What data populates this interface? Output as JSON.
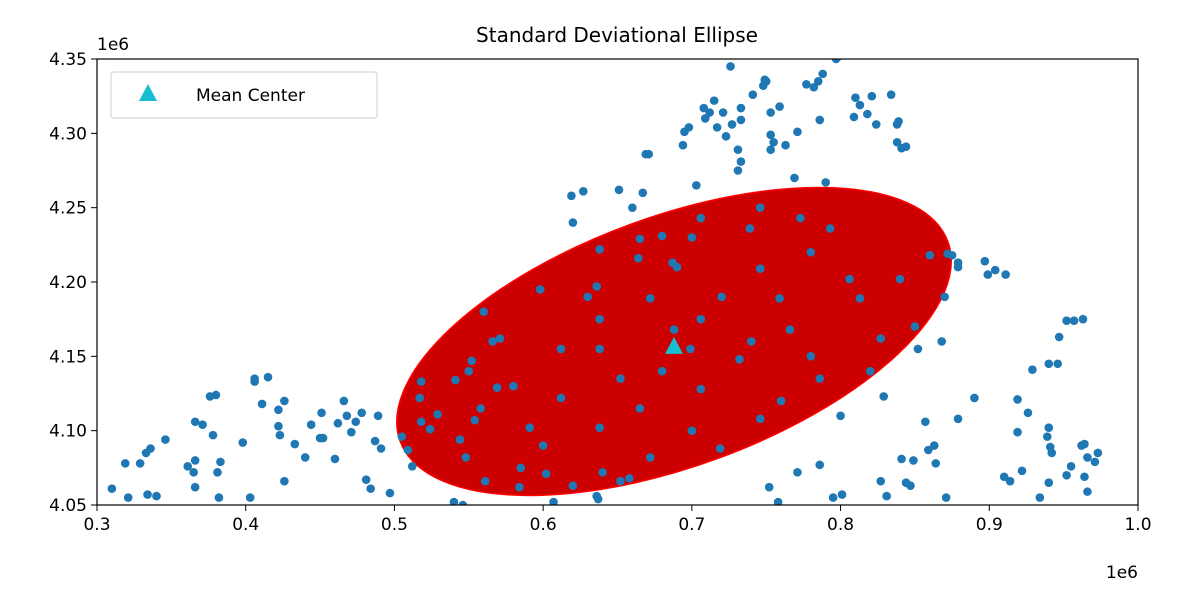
{
  "chart_data": {
    "type": "scatter",
    "title": "Standard Deviational Ellipse",
    "xlabel": "",
    "ylabel": "",
    "x_offset_label": "1e6",
    "y_offset_label": "1e6",
    "xlim": [
      0.3,
      1.0
    ],
    "ylim": [
      4.05,
      4.35
    ],
    "x_ticks": [
      0.3,
      0.4,
      0.5,
      0.6,
      0.7,
      0.8,
      0.9,
      1.0
    ],
    "x_tick_labels": [
      "0.3",
      "0.4",
      "0.5",
      "0.6",
      "0.7",
      "0.8",
      "0.9",
      "1.0"
    ],
    "y_ticks": [
      4.05,
      4.1,
      4.15,
      4.2,
      4.25,
      4.3,
      4.35
    ],
    "y_tick_labels": [
      "4.05",
      "4.10",
      "4.15",
      "4.20",
      "4.25",
      "4.30",
      "4.35"
    ],
    "units_note": "values in units of 1e6",
    "grid": false,
    "legend": {
      "placement": "top-left",
      "entries": [
        {
          "label": "Mean Center",
          "marker": "triangle",
          "color": "#17becf"
        }
      ]
    },
    "colors": {
      "points": "#1f77b4",
      "ellipse_fill": "#cc0000",
      "ellipse_edge": "#ff0000",
      "mean_center": "#17becf"
    },
    "mean_center": {
      "x": 0.688,
      "y": 4.157
    },
    "ellipse": {
      "center_x": 0.688,
      "center_y": 4.16,
      "semi_major": 0.196,
      "semi_minor": 0.084,
      "angle_deg": 20
    },
    "points": [
      [
        0.31,
        4.061
      ],
      [
        0.321,
        4.055
      ],
      [
        0.319,
        4.078
      ],
      [
        0.329,
        4.078
      ],
      [
        0.334,
        4.057
      ],
      [
        0.333,
        4.085
      ],
      [
        0.336,
        4.088
      ],
      [
        0.346,
        4.094
      ],
      [
        0.34,
        4.056
      ],
      [
        0.361,
        4.076
      ],
      [
        0.366,
        4.08
      ],
      [
        0.366,
        4.106
      ],
      [
        0.371,
        4.104
      ],
      [
        0.365,
        4.072
      ],
      [
        0.366,
        4.062
      ],
      [
        0.381,
        4.072
      ],
      [
        0.383,
        4.079
      ],
      [
        0.382,
        4.055
      ],
      [
        0.376,
        4.123
      ],
      [
        0.38,
        4.124
      ],
      [
        0.378,
        4.097
      ],
      [
        0.398,
        4.092
      ],
      [
        0.403,
        4.055
      ],
      [
        0.406,
        4.135
      ],
      [
        0.406,
        4.133
      ],
      [
        0.415,
        4.136
      ],
      [
        0.411,
        4.118
      ],
      [
        0.422,
        4.114
      ],
      [
        0.422,
        4.103
      ],
      [
        0.423,
        4.097
      ],
      [
        0.426,
        4.12
      ],
      [
        0.426,
        4.066
      ],
      [
        0.433,
        4.091
      ],
      [
        0.44,
        4.082
      ],
      [
        0.444,
        4.104
      ],
      [
        0.45,
        4.095
      ],
      [
        0.451,
        4.112
      ],
      [
        0.452,
        4.095
      ],
      [
        0.46,
        4.081
      ],
      [
        0.462,
        4.105
      ],
      [
        0.466,
        4.12
      ],
      [
        0.468,
        4.11
      ],
      [
        0.471,
        4.099
      ],
      [
        0.474,
        4.106
      ],
      [
        0.478,
        4.112
      ],
      [
        0.481,
        4.067
      ],
      [
        0.484,
        4.061
      ],
      [
        0.487,
        4.093
      ],
      [
        0.489,
        4.11
      ],
      [
        0.491,
        4.088
      ],
      [
        0.497,
        4.058
      ],
      [
        0.505,
        4.096
      ],
      [
        0.512,
        4.076
      ],
      [
        0.509,
        4.087
      ],
      [
        0.518,
        4.106
      ],
      [
        0.529,
        4.111
      ],
      [
        0.518,
        4.133
      ],
      [
        0.541,
        4.134
      ],
      [
        0.544,
        4.094
      ],
      [
        0.552,
        4.147
      ],
      [
        0.554,
        4.107
      ],
      [
        0.546,
        4.05
      ],
      [
        0.566,
        4.16
      ],
      [
        0.569,
        4.129
      ],
      [
        0.619,
        4.258
      ],
      [
        0.627,
        4.261
      ],
      [
        0.636,
        4.197
      ],
      [
        0.651,
        4.262
      ],
      [
        0.664,
        4.216
      ],
      [
        0.667,
        4.26
      ],
      [
        0.669,
        4.286
      ],
      [
        0.671,
        4.286
      ],
      [
        0.68,
        4.231
      ],
      [
        0.687,
        4.213
      ],
      [
        0.694,
        4.292
      ],
      [
        0.695,
        4.301
      ],
      [
        0.698,
        4.304
      ],
      [
        0.703,
        4.265
      ],
      [
        0.708,
        4.317
      ],
      [
        0.709,
        4.31
      ],
      [
        0.712,
        4.314
      ],
      [
        0.715,
        4.322
      ],
      [
        0.717,
        4.304
      ],
      [
        0.721,
        4.314
      ],
      [
        0.723,
        4.298
      ],
      [
        0.727,
        4.306
      ],
      [
        0.726,
        4.345
      ],
      [
        0.733,
        4.317
      ],
      [
        0.733,
        4.309
      ],
      [
        0.731,
        4.289
      ],
      [
        0.733,
        4.281
      ],
      [
        0.731,
        4.275
      ],
      [
        0.741,
        4.326
      ],
      [
        0.748,
        4.332
      ],
      [
        0.749,
        4.336
      ],
      [
        0.75,
        4.335
      ],
      [
        0.753,
        4.299
      ],
      [
        0.755,
        4.294
      ],
      [
        0.759,
        4.318
      ],
      [
        0.753,
        4.289
      ],
      [
        0.753,
        4.314
      ],
      [
        0.763,
        4.292
      ],
      [
        0.769,
        4.27
      ],
      [
        0.771,
        4.301
      ],
      [
        0.777,
        4.333
      ],
      [
        0.782,
        4.331
      ],
      [
        0.785,
        4.335
      ],
      [
        0.788,
        4.34
      ],
      [
        0.797,
        4.35
      ],
      [
        0.799,
        4.352
      ],
      [
        0.809,
        4.311
      ],
      [
        0.813,
        4.319
      ],
      [
        0.81,
        4.324
      ],
      [
        0.818,
        4.313
      ],
      [
        0.821,
        4.325
      ],
      [
        0.824,
        4.306
      ],
      [
        0.834,
        4.326
      ],
      [
        0.838,
        4.306
      ],
      [
        0.839,
        4.308
      ],
      [
        0.838,
        4.294
      ],
      [
        0.841,
        4.29
      ],
      [
        0.844,
        4.291
      ],
      [
        0.79,
        4.267
      ],
      [
        0.786,
        4.309
      ],
      [
        0.872,
        4.219
      ],
      [
        0.875,
        4.218
      ],
      [
        0.879,
        4.21
      ],
      [
        0.879,
        4.213
      ],
      [
        0.897,
        4.214
      ],
      [
        0.899,
        4.205
      ],
      [
        0.904,
        4.208
      ],
      [
        0.911,
        4.205
      ],
      [
        0.929,
        4.141
      ],
      [
        0.919,
        4.121
      ],
      [
        0.926,
        4.112
      ],
      [
        0.89,
        4.122
      ],
      [
        0.879,
        4.108
      ],
      [
        0.919,
        4.099
      ],
      [
        0.94,
        4.145
      ],
      [
        0.947,
        4.163
      ],
      [
        0.952,
        4.174
      ],
      [
        0.94,
        4.102
      ],
      [
        0.939,
        4.096
      ],
      [
        0.941,
        4.089
      ],
      [
        0.942,
        4.085
      ],
      [
        0.952,
        4.07
      ],
      [
        0.955,
        4.076
      ],
      [
        0.962,
        4.09
      ],
      [
        0.964,
        4.091
      ],
      [
        0.966,
        4.082
      ],
      [
        0.971,
        4.079
      ],
      [
        0.973,
        4.085
      ],
      [
        0.966,
        4.059
      ],
      [
        0.964,
        4.069
      ],
      [
        0.94,
        4.065
      ],
      [
        0.934,
        4.055
      ],
      [
        0.922,
        4.073
      ],
      [
        0.914,
        4.066
      ],
      [
        0.91,
        4.069
      ],
      [
        0.871,
        4.055
      ],
      [
        0.849,
        4.08
      ],
      [
        0.841,
        4.081
      ],
      [
        0.859,
        4.087
      ],
      [
        0.864,
        4.078
      ],
      [
        0.857,
        4.106
      ],
      [
        0.829,
        4.123
      ],
      [
        0.852,
        4.155
      ],
      [
        0.868,
        4.16
      ],
      [
        0.863,
        4.09
      ],
      [
        0.957,
        4.174
      ],
      [
        0.963,
        4.175
      ],
      [
        0.946,
        4.145
      ],
      [
        0.795,
        4.055
      ],
      [
        0.801,
        4.057
      ],
      [
        0.771,
        4.072
      ],
      [
        0.758,
        4.052
      ],
      [
        0.752,
        4.062
      ],
      [
        0.786,
        4.077
      ],
      [
        0.827,
        4.066
      ],
      [
        0.831,
        4.056
      ],
      [
        0.844,
        4.065
      ],
      [
        0.847,
        4.063
      ],
      [
        0.602,
        4.071
      ],
      [
        0.62,
        4.063
      ],
      [
        0.636,
        4.056
      ],
      [
        0.637,
        4.054
      ],
      [
        0.652,
        4.066
      ],
      [
        0.607,
        4.052
      ],
      [
        0.64,
        4.072
      ],
      [
        0.584,
        4.062
      ],
      [
        0.561,
        4.066
      ],
      [
        0.548,
        4.082
      ],
      [
        0.54,
        4.052
      ],
      [
        0.688,
        4.168
      ],
      [
        0.706,
        4.175
      ],
      [
        0.672,
        4.189
      ],
      [
        0.638,
        4.175
      ],
      [
        0.652,
        4.135
      ],
      [
        0.706,
        4.128
      ],
      [
        0.739,
        4.236
      ],
      [
        0.773,
        4.243
      ],
      [
        0.806,
        4.202
      ],
      [
        0.612,
        4.122
      ],
      [
        0.591,
        4.102
      ],
      [
        0.558,
        4.115
      ],
      [
        0.517,
        4.122
      ],
      [
        0.638,
        4.102
      ],
      [
        0.672,
        4.082
      ],
      [
        0.719,
        4.088
      ],
      [
        0.746,
        4.108
      ],
      [
        0.786,
        4.135
      ],
      [
        0.827,
        4.162
      ],
      [
        0.84,
        4.202
      ],
      [
        0.759,
        4.189
      ],
      [
        0.612,
        4.155
      ],
      [
        0.665,
        4.229
      ],
      [
        0.706,
        4.243
      ],
      [
        0.746,
        4.25
      ],
      [
        0.793,
        4.236
      ],
      [
        0.638,
        4.222
      ],
      [
        0.598,
        4.195
      ],
      [
        0.571,
        4.162
      ],
      [
        0.524,
        4.101
      ],
      [
        0.585,
        4.075
      ],
      [
        0.658,
        4.068
      ],
      [
        0.699,
        4.155
      ],
      [
        0.732,
        4.148
      ],
      [
        0.766,
        4.168
      ],
      [
        0.813,
        4.189
      ],
      [
        0.86,
        4.218
      ],
      [
        0.746,
        4.209
      ],
      [
        0.665,
        4.115
      ],
      [
        0.638,
        4.155
      ],
      [
        0.69,
        4.21
      ],
      [
        0.72,
        4.19
      ],
      [
        0.78,
        4.15
      ],
      [
        0.82,
        4.14
      ],
      [
        0.76,
        4.12
      ],
      [
        0.7,
        4.1
      ],
      [
        0.63,
        4.19
      ],
      [
        0.58,
        4.13
      ],
      [
        0.55,
        4.14
      ],
      [
        0.8,
        4.11
      ],
      [
        0.85,
        4.17
      ],
      [
        0.87,
        4.19
      ],
      [
        0.62,
        4.24
      ],
      [
        0.66,
        4.25
      ],
      [
        0.7,
        4.23
      ],
      [
        0.74,
        4.16
      ],
      [
        0.68,
        4.14
      ],
      [
        0.6,
        4.09
      ],
      [
        0.56,
        4.18
      ],
      [
        0.78,
        4.22
      ]
    ]
  }
}
